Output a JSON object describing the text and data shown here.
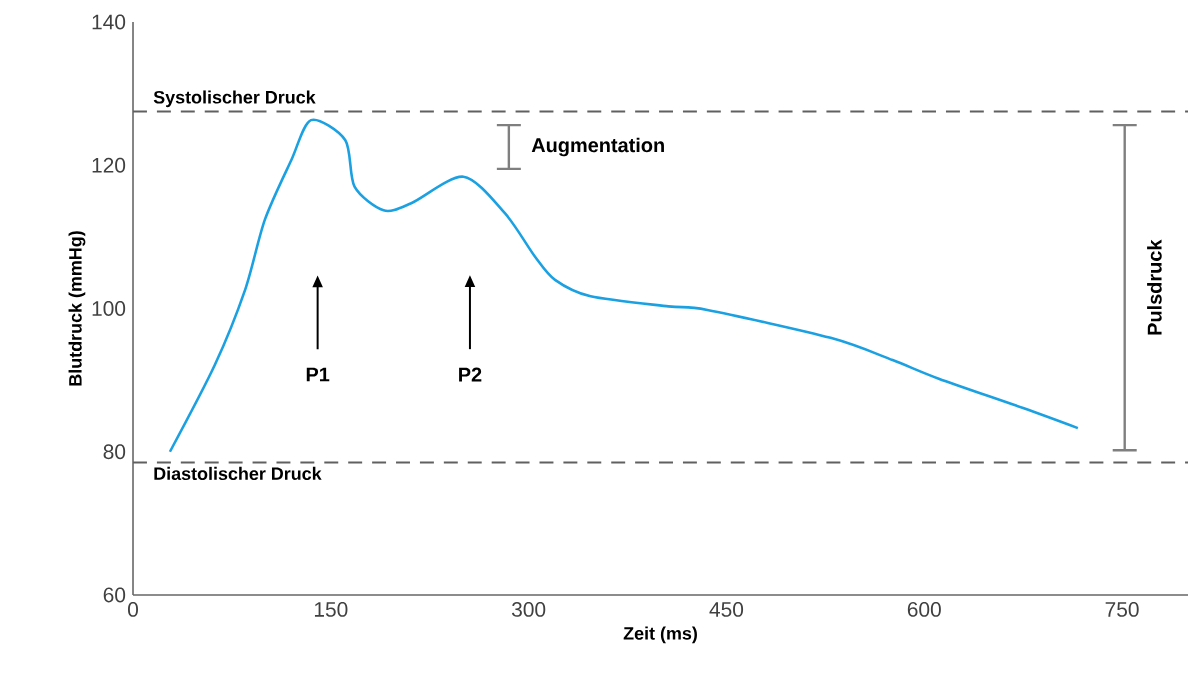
{
  "chart_data": {
    "type": "line",
    "xlabel": "Zeit (ms)",
    "ylabel": "Blutdruck (mmHg)",
    "xlim": [
      0,
      800
    ],
    "ylim": [
      60,
      140
    ],
    "xticks": [
      0,
      150,
      300,
      450,
      600,
      750
    ],
    "yticks": [
      60,
      80,
      100,
      120,
      140
    ],
    "grid": false,
    "series": [
      {
        "color": "#1ba1e2",
        "x": [
          28,
          62,
          85,
          100,
          120,
          135,
          161,
          168,
          190,
          211,
          250.5,
          282,
          305,
          320,
          347,
          406,
          435.5,
          529,
          576,
          611,
          675,
          716.5
        ],
        "values": [
          80.0,
          92.1,
          102.6,
          112.4,
          120.7,
          126.3,
          123.5,
          117.0,
          113.7,
          114.7,
          118.4,
          113.3,
          107.2,
          104.0,
          101.7,
          100.3,
          99.8,
          95.9,
          92.8,
          90.2,
          86.1,
          83.3
        ]
      },
      {
        "type": "line",
        "color": "#7f7f7f",
        "x": [
          285,
          285
        ],
        "values": [
          119.5,
          125.6
        ]
      },
      {
        "type": "line",
        "color": "#7f7f7f",
        "x": [
          752,
          752
        ],
        "values": [
          80.2,
          125.6
        ]
      }
    ],
    "ref_lines": [
      {
        "axis": "y",
        "value": 127.5,
        "label": "Systolischer Druck",
        "color": "#606060",
        "line_style": "dashed"
      },
      {
        "axis": "y",
        "value": 78.5,
        "label": "Diastolischer Druck",
        "color": "#606060",
        "line_style": "dashed"
      }
    ],
    "annotations": [
      "P1",
      "P2",
      "Augmentation",
      "Pulsdruck"
    ]
  }
}
